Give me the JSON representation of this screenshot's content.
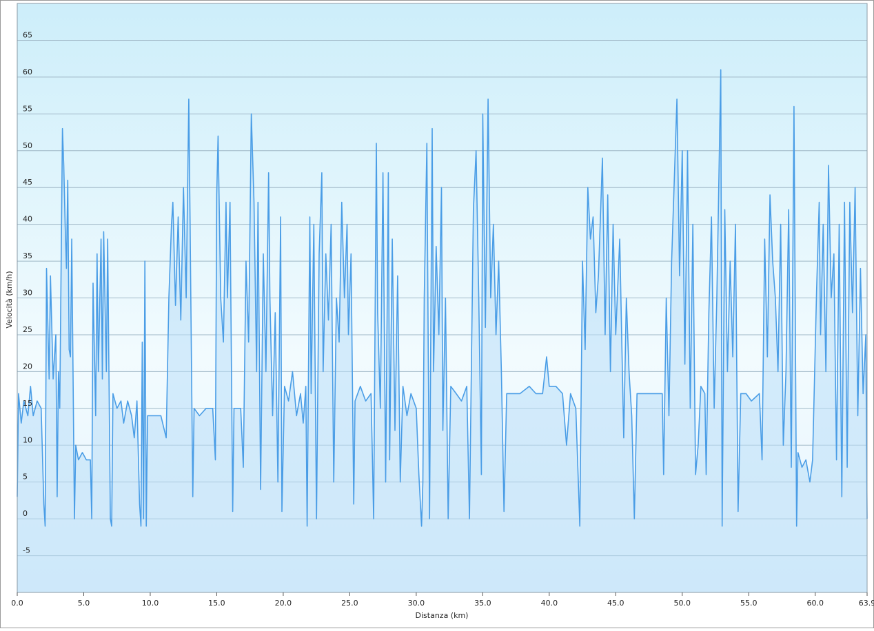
{
  "chart_data": {
    "type": "area",
    "x_label": "Distanza  (km)",
    "y_label": "Velocità (km/h)",
    "color": "#4a9de6",
    "fill": "#b9def7",
    "grid": true,
    "xlim": [
      0,
      63.9
    ],
    "ylim": [
      -10,
      70
    ],
    "xticks": [
      {
        "value": 0,
        "label": "0.0"
      },
      {
        "value": 5,
        "label": "5.0"
      },
      {
        "value": 10,
        "label": "10.0"
      },
      {
        "value": 15,
        "label": "15.0"
      },
      {
        "value": 20,
        "label": "20.0"
      },
      {
        "value": 25,
        "label": "25.0"
      },
      {
        "value": 30,
        "label": "30.0"
      },
      {
        "value": 35,
        "label": "35.0"
      },
      {
        "value": 40,
        "label": "40.0"
      },
      {
        "value": 45,
        "label": "45.0"
      },
      {
        "value": 50,
        "label": "50.0"
      },
      {
        "value": 55,
        "label": "55.0"
      },
      {
        "value": 60,
        "label": "60.0"
      },
      {
        "value": 63.9,
        "label": "63.9"
      }
    ],
    "yticks": [
      -5,
      0,
      5,
      10,
      15,
      20,
      25,
      30,
      35,
      40,
      45,
      50,
      55,
      60,
      65
    ],
    "x": [
      0,
      0.1,
      0.3,
      0.5,
      0.8,
      1.0,
      1.2,
      1.5,
      1.8,
      2.0,
      2.1,
      2.2,
      2.4,
      2.5,
      2.7,
      2.9,
      3.0,
      3.1,
      3.2,
      3.4,
      3.5,
      3.6,
      3.7,
      3.8,
      3.9,
      4.0,
      4.1,
      4.3,
      4.4,
      4.6,
      4.9,
      5.2,
      5.5,
      5.6,
      5.7,
      5.9,
      6.0,
      6.1,
      6.3,
      6.4,
      6.5,
      6.7,
      6.8,
      7.0,
      7.1,
      7.2,
      7.5,
      7.8,
      8.0,
      8.3,
      8.6,
      8.8,
      9.0,
      9.2,
      9.3,
      9.4,
      9.5,
      9.6,
      9.7,
      9.8,
      10.3,
      10.8,
      11.2,
      11.4,
      11.6,
      11.7,
      11.9,
      12.1,
      12.3,
      12.5,
      12.7,
      12.9,
      13.0,
      13.2,
      13.3,
      13.7,
      14.2,
      14.7,
      14.9,
      15.0,
      15.1,
      15.3,
      15.5,
      15.7,
      15.8,
      16.0,
      16.2,
      16.3,
      16.8,
      17.0,
      17.2,
      17.4,
      17.6,
      17.8,
      18.0,
      18.1,
      18.3,
      18.5,
      18.7,
      18.9,
      19.0,
      19.2,
      19.4,
      19.6,
      19.8,
      19.9,
      20.1,
      20.4,
      20.7,
      21.0,
      21.3,
      21.5,
      21.7,
      21.8,
      22.0,
      22.1,
      22.3,
      22.5,
      22.7,
      22.9,
      23.0,
      23.2,
      23.4,
      23.6,
      23.8,
      24.0,
      24.2,
      24.4,
      24.6,
      24.8,
      24.9,
      25.1,
      25.3,
      25.4,
      25.8,
      26.2,
      26.6,
      26.8,
      27.0,
      27.1,
      27.3,
      27.5,
      27.7,
      27.9,
      28.0,
      28.2,
      28.4,
      28.6,
      28.8,
      29.0,
      29.3,
      29.6,
      30.0,
      30.2,
      30.4,
      30.5,
      30.6,
      30.8,
      30.9,
      31.0,
      31.2,
      31.3,
      31.5,
      31.7,
      31.9,
      32.0,
      32.2,
      32.4,
      32.6,
      33.0,
      33.4,
      33.8,
      34.0,
      34.3,
      34.5,
      34.7,
      34.9,
      35.0,
      35.2,
      35.4,
      35.6,
      35.8,
      36.0,
      36.2,
      36.4,
      36.6,
      36.8,
      37.2,
      37.8,
      38.5,
      39.0,
      39.5,
      39.8,
      40.0,
      40.5,
      41.0,
      41.3,
      41.6,
      42.0,
      42.3,
      42.5,
      42.7,
      42.9,
      43.1,
      43.3,
      43.5,
      43.7,
      44.0,
      44.2,
      44.4,
      44.6,
      44.8,
      45.0,
      45.3,
      45.6,
      45.8,
      46.0,
      46.2,
      46.4,
      46.6,
      47.2,
      47.8,
      48.5,
      48.6,
      48.8,
      49.0,
      49.2,
      49.6,
      49.8,
      50.0,
      50.2,
      50.4,
      50.6,
      50.8,
      51.0,
      51.2,
      51.4,
      51.7,
      51.8,
      52.0,
      52.2,
      52.4,
      52.6,
      52.9,
      53.0,
      53.2,
      53.4,
      53.6,
      53.8,
      54.0,
      54.2,
      54.4,
      54.8,
      55.2,
      55.8,
      56.0,
      56.2,
      56.4,
      56.6,
      56.8,
      57.0,
      57.2,
      57.4,
      57.6,
      57.8,
      58.0,
      58.2,
      58.4,
      58.6,
      58.7,
      59.0,
      59.3,
      59.6,
      59.8,
      60.1,
      60.3,
      60.4,
      60.6,
      60.8,
      61.0,
      61.2,
      61.4,
      61.6,
      61.8,
      62.0,
      62.2,
      62.4,
      62.6,
      62.8,
      63.0,
      63.2,
      63.4,
      63.6,
      63.8,
      63.9
    ],
    "values": [
      3,
      17,
      13,
      16,
      14,
      18,
      14,
      16,
      15,
      2,
      -1,
      34,
      19,
      33,
      19,
      25,
      3,
      20,
      15,
      53,
      48,
      40,
      34,
      46,
      23,
      22,
      38,
      0,
      10,
      8,
      9,
      8,
      8,
      0,
      32,
      14,
      36,
      20,
      38,
      19,
      39,
      20,
      38,
      0,
      -1,
      17,
      15,
      16,
      13,
      16,
      14,
      11,
      16,
      2,
      -1,
      24,
      0,
      35,
      -1,
      14,
      14,
      14,
      11,
      30,
      40,
      43,
      29,
      41,
      27,
      45,
      30,
      57,
      40,
      3,
      15,
      14,
      15,
      15,
      8,
      44,
      52,
      30,
      24,
      43,
      30,
      43,
      1,
      15,
      15,
      7,
      35,
      24,
      55,
      43,
      20,
      43,
      4,
      36,
      20,
      47,
      30,
      14,
      28,
      5,
      41,
      1,
      18,
      16,
      20,
      14,
      17,
      13,
      18,
      -1,
      41,
      17,
      40,
      0,
      36,
      47,
      20,
      36,
      27,
      40,
      5,
      30,
      24,
      43,
      30,
      40,
      25,
      36,
      2,
      16,
      18,
      16,
      17,
      0,
      51,
      28,
      15,
      47,
      5,
      47,
      8,
      38,
      12,
      33,
      5,
      18,
      14,
      17,
      15,
      6,
      -1,
      5,
      30,
      51,
      24,
      0,
      53,
      20,
      37,
      25,
      45,
      12,
      30,
      0,
      18,
      17,
      16,
      18,
      0,
      42,
      50,
      30,
      6,
      55,
      26,
      57,
      30,
      40,
      25,
      35,
      20,
      1,
      17,
      17,
      17,
      18,
      17,
      17,
      22,
      18,
      18,
      17,
      10,
      17,
      15,
      -1,
      35,
      23,
      45,
      38,
      41,
      28,
      33,
      49,
      25,
      44,
      20,
      40,
      25,
      38,
      11,
      30,
      20,
      14,
      0,
      17,
      17,
      17,
      17,
      6,
      30,
      14,
      35,
      57,
      33,
      50,
      21,
      50,
      15,
      40,
      6,
      10,
      18,
      17,
      6,
      28,
      41,
      15,
      30,
      61,
      -1,
      42,
      20,
      35,
      22,
      40,
      1,
      17,
      17,
      16,
      17,
      8,
      38,
      22,
      44,
      35,
      30,
      20,
      40,
      10,
      20,
      42,
      7,
      56,
      -1,
      9,
      7,
      8,
      5,
      8,
      31,
      43,
      25,
      40,
      20,
      48,
      30,
      36,
      8,
      40,
      3,
      43,
      7,
      43,
      28,
      45,
      14,
      34,
      17,
      25,
      0
    ]
  }
}
